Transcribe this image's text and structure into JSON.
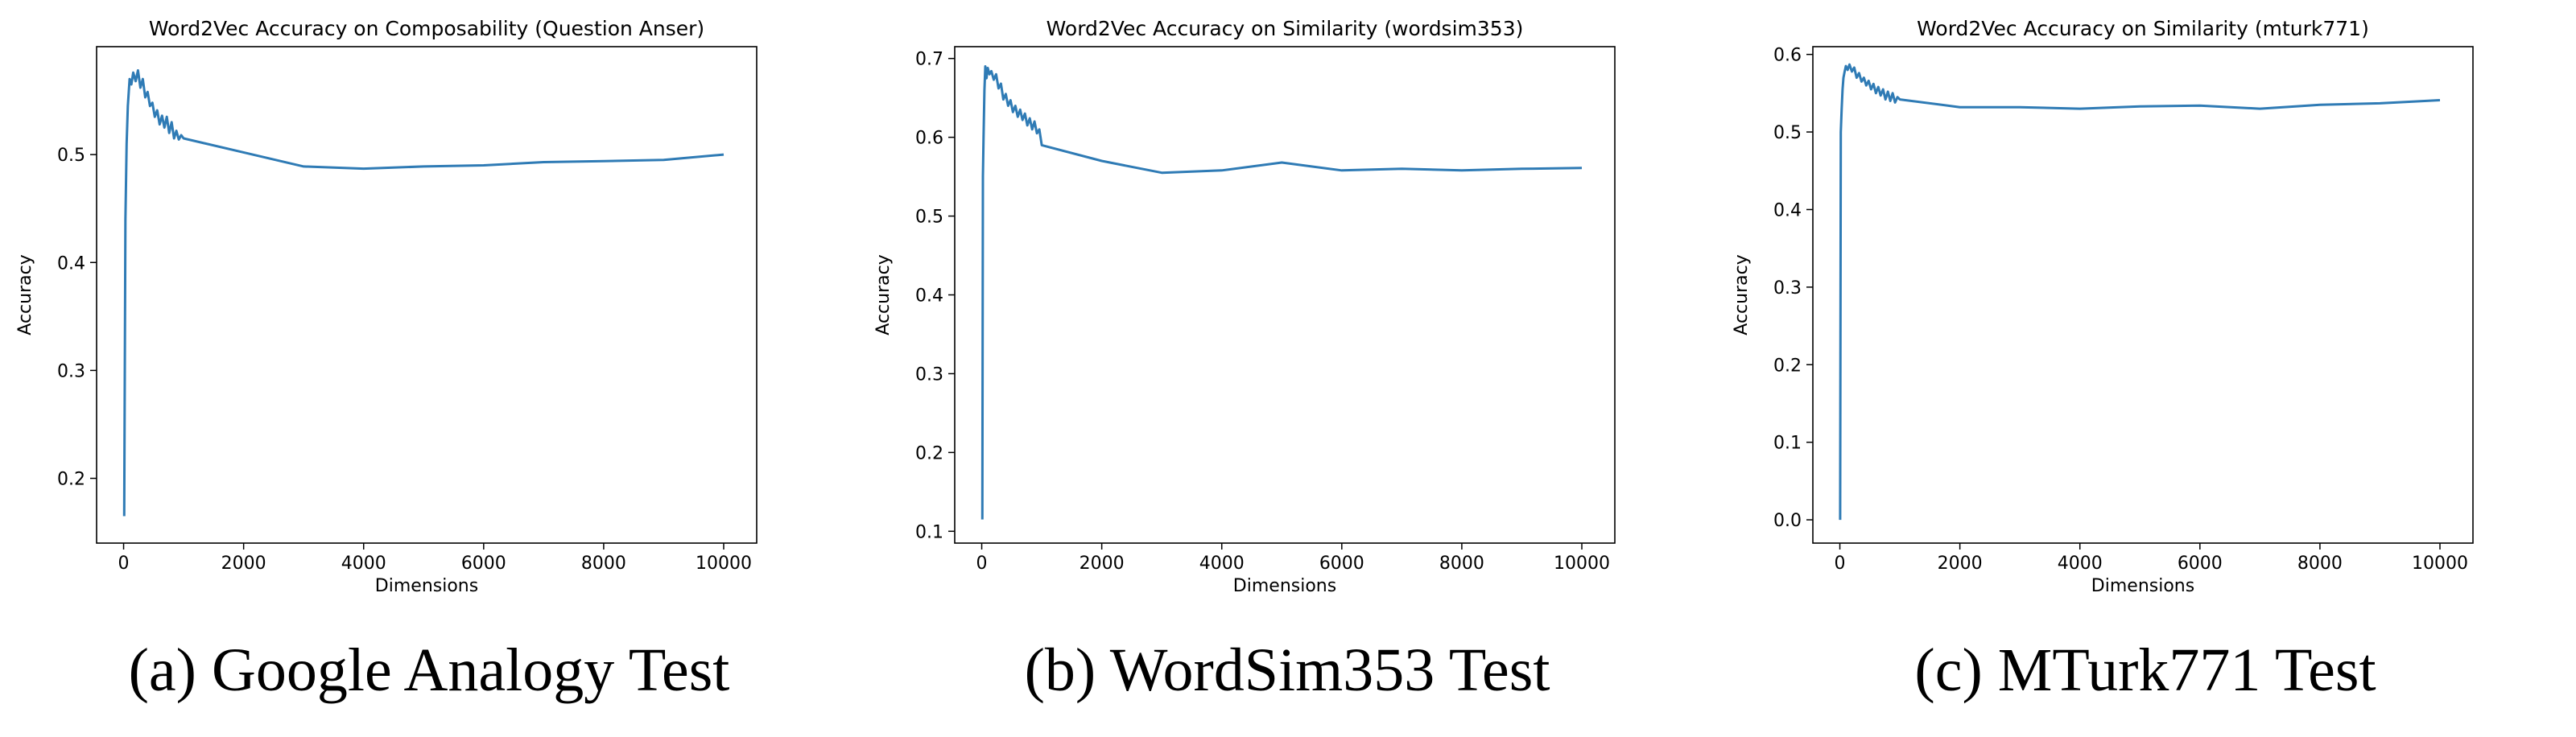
{
  "chart_data": [
    {
      "type": "line",
      "title": "Word2Vec Accuracy on Composability (Question Anser)",
      "xlabel": "Dimensions",
      "ylabel": "Accuracy",
      "caption": "(a) Google Analogy Test",
      "xlim": [
        -450,
        10550
      ],
      "ylim": [
        0.14,
        0.6
      ],
      "xticks": [
        0,
        2000,
        4000,
        6000,
        8000,
        10000
      ],
      "yticks": [
        0.2,
        0.3,
        0.4,
        0.5
      ],
      "ytick_labels": [
        "0.2",
        "0.3",
        "0.4",
        "0.5"
      ],
      "grid": false,
      "series": [
        {
          "color": "#2f7bb5",
          "x": [
            10,
            30,
            50,
            70,
            100,
            130,
            160,
            200,
            240,
            280,
            320,
            360,
            400,
            440,
            480,
            520,
            560,
            600,
            640,
            680,
            720,
            760,
            800,
            840,
            880,
            920,
            960,
            1000,
            2000,
            3000,
            4000,
            5000,
            6000,
            7000,
            8000,
            9000,
            10000
          ],
          "y": [
            0.165,
            0.44,
            0.51,
            0.545,
            0.57,
            0.565,
            0.576,
            0.568,
            0.578,
            0.562,
            0.57,
            0.553,
            0.558,
            0.545,
            0.548,
            0.535,
            0.541,
            0.528,
            0.536,
            0.525,
            0.535,
            0.52,
            0.53,
            0.515,
            0.522,
            0.514,
            0.518,
            0.515,
            0.502,
            0.489,
            0.487,
            0.489,
            0.49,
            0.493,
            0.494,
            0.495,
            0.5
          ]
        }
      ]
    },
    {
      "type": "line",
      "title": "Word2Vec Accuracy on Similarity (wordsim353)",
      "xlabel": "Dimensions",
      "ylabel": "Accuracy",
      "caption": "(b) WordSim353 Test",
      "xlim": [
        -450,
        10550
      ],
      "ylim": [
        0.085,
        0.715
      ],
      "xticks": [
        0,
        2000,
        4000,
        6000,
        8000,
        10000
      ],
      "yticks": [
        0.1,
        0.2,
        0.3,
        0.4,
        0.5,
        0.6,
        0.7
      ],
      "ytick_labels": [
        "0.1",
        "0.2",
        "0.3",
        "0.4",
        "0.5",
        "0.6",
        "0.7"
      ],
      "grid": false,
      "series": [
        {
          "color": "#2f7bb5",
          "x": [
            10,
            20,
            30,
            45,
            60,
            80,
            100,
            130,
            160,
            200,
            240,
            280,
            320,
            360,
            400,
            440,
            480,
            520,
            560,
            600,
            640,
            680,
            720,
            760,
            800,
            840,
            880,
            920,
            960,
            1000,
            2000,
            3000,
            4000,
            5000,
            6000,
            7000,
            8000,
            9000,
            10000
          ],
          "y": [
            0.115,
            0.55,
            0.6,
            0.66,
            0.69,
            0.675,
            0.688,
            0.68,
            0.684,
            0.673,
            0.68,
            0.662,
            0.668,
            0.648,
            0.655,
            0.64,
            0.647,
            0.632,
            0.64,
            0.626,
            0.635,
            0.622,
            0.63,
            0.615,
            0.624,
            0.61,
            0.62,
            0.605,
            0.61,
            0.59,
            0.57,
            0.555,
            0.558,
            0.568,
            0.558,
            0.56,
            0.558,
            0.56,
            0.561
          ]
        }
      ]
    },
    {
      "type": "line",
      "title": "Word2Vec Accuracy on Similarity (mturk771)",
      "xlabel": "Dimensions",
      "ylabel": "Accuracy",
      "caption": "(c) MTurk771 Test",
      "xlim": [
        -450,
        10550
      ],
      "ylim": [
        -0.03,
        0.61
      ],
      "xticks": [
        0,
        2000,
        4000,
        6000,
        8000,
        10000
      ],
      "yticks": [
        0.0,
        0.1,
        0.2,
        0.3,
        0.4,
        0.5,
        0.6
      ],
      "ytick_labels": [
        "0.0",
        "0.1",
        "0.2",
        "0.3",
        "0.4",
        "0.5",
        "0.6"
      ],
      "grid": false,
      "series": [
        {
          "color": "#2f7bb5",
          "x": [
            5,
            15,
            30,
            45,
            60,
            80,
            100,
            130,
            160,
            200,
            240,
            280,
            320,
            360,
            400,
            440,
            480,
            520,
            560,
            600,
            640,
            680,
            720,
            760,
            800,
            840,
            880,
            920,
            960,
            1000,
            2000,
            3000,
            4000,
            5000,
            6000,
            7000,
            8000,
            9000,
            10000
          ],
          "y": [
            0.0,
            0.5,
            0.53,
            0.555,
            0.57,
            0.578,
            0.585,
            0.58,
            0.587,
            0.578,
            0.583,
            0.57,
            0.576,
            0.565,
            0.57,
            0.56,
            0.566,
            0.555,
            0.562,
            0.55,
            0.558,
            0.547,
            0.555,
            0.542,
            0.552,
            0.54,
            0.55,
            0.538,
            0.545,
            0.542,
            0.532,
            0.532,
            0.53,
            0.533,
            0.534,
            0.53,
            0.535,
            0.537,
            0.541
          ]
        }
      ]
    }
  ]
}
